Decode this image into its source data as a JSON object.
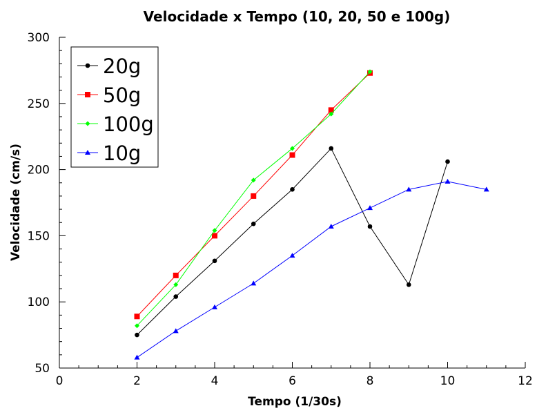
{
  "chart_data": {
    "type": "line",
    "title": "Velocidade x Tempo (10, 20, 50 e 100g)",
    "xlabel": "Tempo (1/30s)",
    "ylabel": "Velocidade (cm/s)",
    "xlim": [
      0,
      12
    ],
    "ylim": [
      50,
      300
    ],
    "xticks": [
      "0",
      "2",
      "4",
      "6",
      "8",
      "10",
      "12"
    ],
    "yticks": [
      "50",
      "100",
      "150",
      "200",
      "250",
      "300"
    ],
    "grid": false,
    "legend_position": "top-left",
    "series": [
      {
        "name": "20g",
        "color": "#000000",
        "marker": "circle",
        "x": [
          2,
          3,
          4,
          5,
          6,
          7,
          8,
          9,
          10
        ],
        "y": [
          75,
          104,
          131,
          159,
          185,
          216,
          157,
          113,
          206
        ]
      },
      {
        "name": "50g",
        "color": "#ff0000",
        "marker": "square",
        "x": [
          2,
          3,
          4,
          5,
          6,
          7,
          8
        ],
        "y": [
          89,
          120,
          150,
          180,
          211,
          245,
          273
        ]
      },
      {
        "name": "100g",
        "color": "#00ff00",
        "marker": "diamond",
        "x": [
          2,
          3,
          4,
          5,
          6,
          7,
          8
        ],
        "y": [
          82,
          113,
          154,
          192,
          216,
          242,
          274
        ]
      },
      {
        "name": "10g",
        "color": "#0000ff",
        "marker": "triangle",
        "x": [
          2,
          3,
          4,
          5,
          6,
          7,
          8,
          9,
          10,
          11
        ],
        "y": [
          58,
          78,
          96,
          114,
          135,
          157,
          171,
          185,
          191,
          185
        ]
      }
    ]
  }
}
